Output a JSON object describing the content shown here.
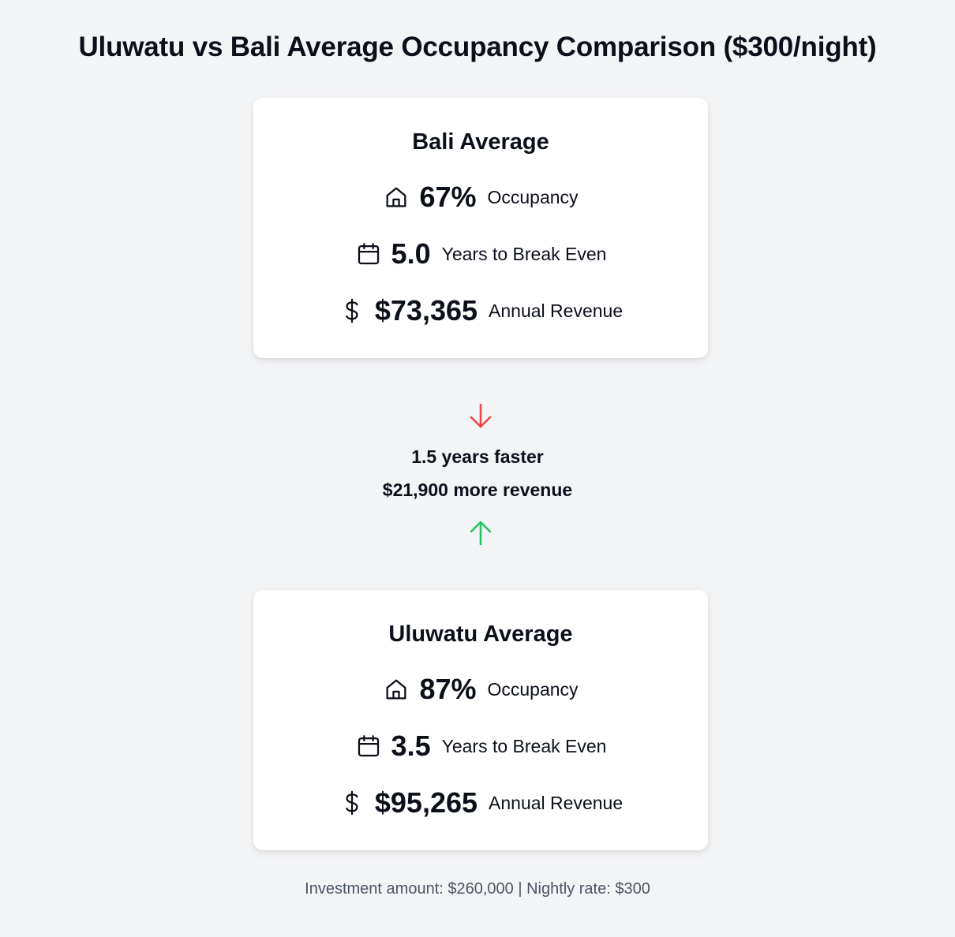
{
  "title": "Uluwatu vs Bali Average Occupancy Comparison ($300/night)",
  "cards": [
    {
      "title": "Bali Average",
      "occupancy": {
        "icon": "home-icon",
        "value": "67%",
        "label": "Occupancy"
      },
      "break_even": {
        "icon": "calendar-icon",
        "value": "5.0",
        "label": "Years to Break Even"
      },
      "revenue": {
        "icon": "dollar-icon",
        "value": "$73,365",
        "label": "Annual Revenue"
      }
    },
    {
      "title": "Uluwatu Average",
      "occupancy": {
        "icon": "home-icon",
        "value": "87%",
        "label": "Occupancy"
      },
      "break_even": {
        "icon": "calendar-icon",
        "value": "3.5",
        "label": "Years to Break Even"
      },
      "revenue": {
        "icon": "dollar-icon",
        "value": "$95,265",
        "label": "Annual Revenue"
      }
    }
  ],
  "comparison": {
    "down_arrow_icon": "arrow-down-icon",
    "up_arrow_icon": "arrow-up-icon",
    "down_color": "#ef4444",
    "up_color": "#22c55e",
    "years_diff": "1.5 years faster",
    "revenue_diff": "$21,900 more revenue"
  },
  "footer": "Investment amount: $260,000 | Nightly rate: $300"
}
